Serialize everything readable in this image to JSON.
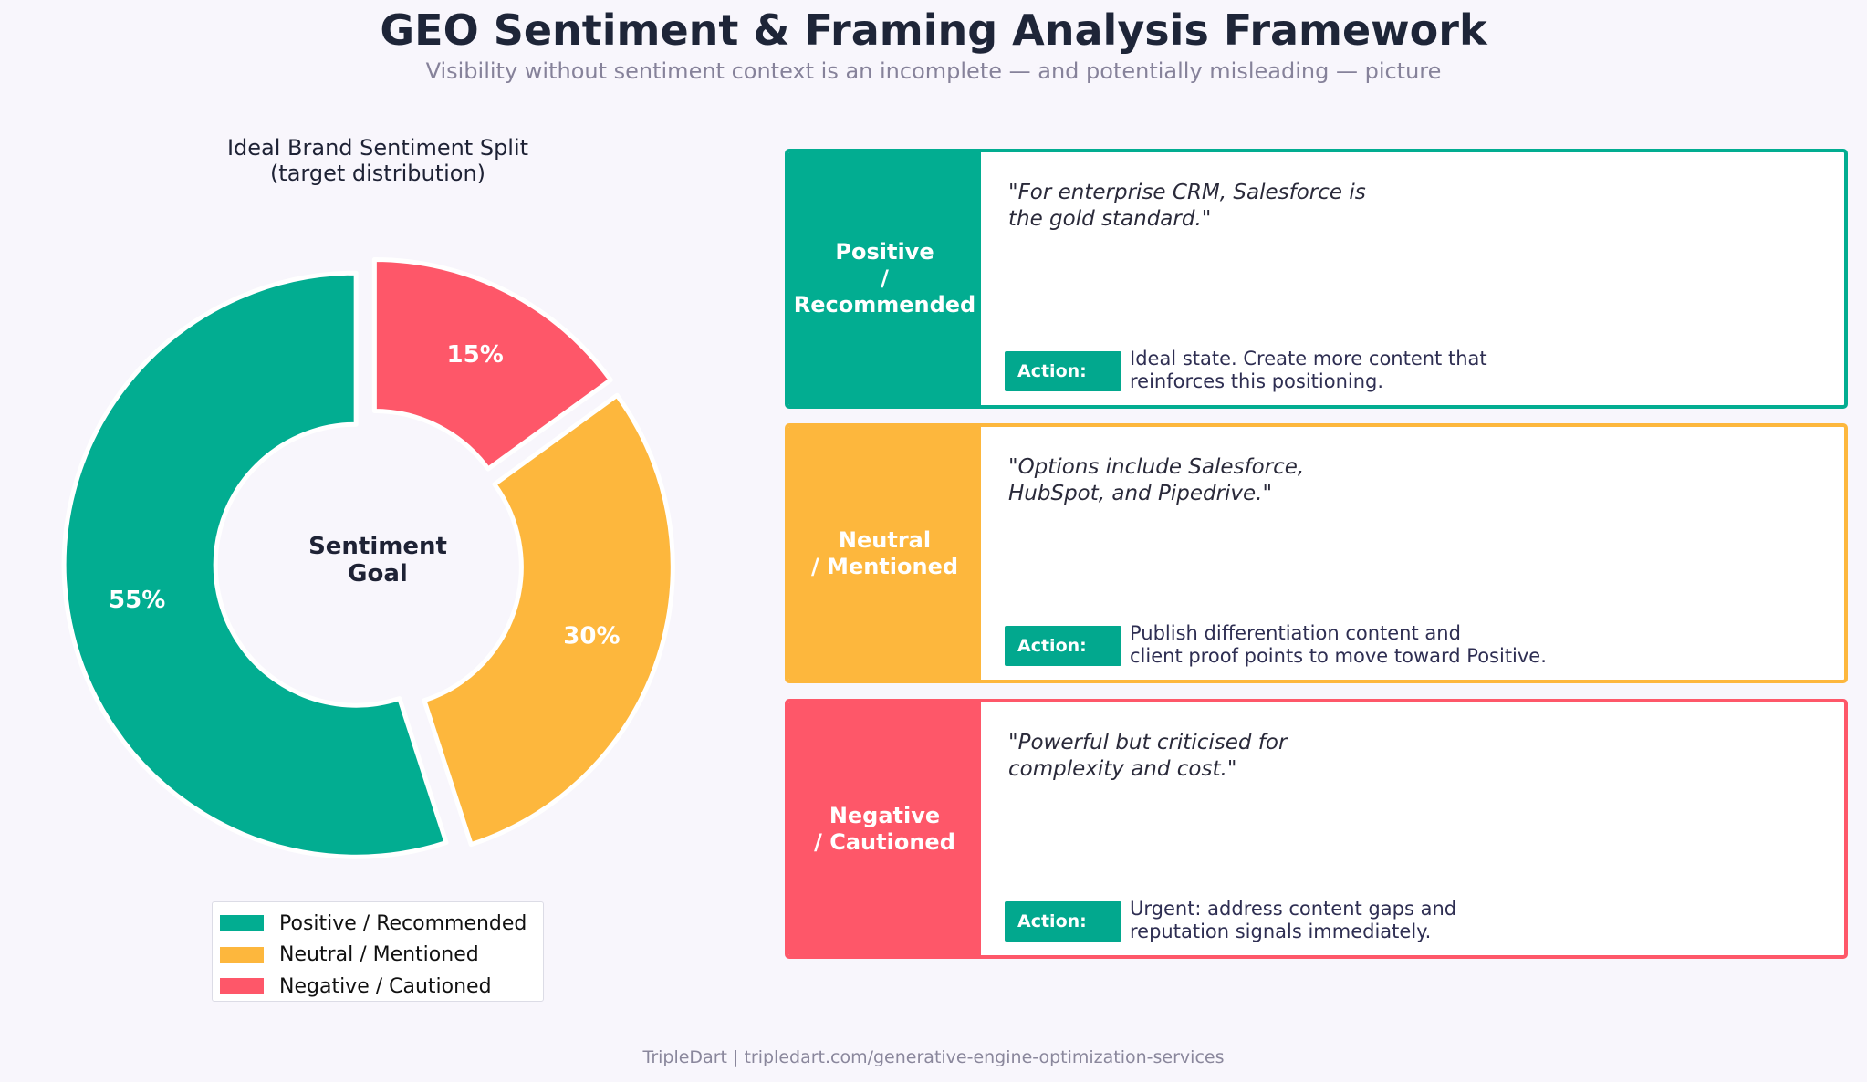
{
  "header": {
    "title": "GEO Sentiment & Framing Analysis Framework",
    "subtitle": "Visibility without sentiment context is an incomplete — and potentially misleading — picture"
  },
  "chart_data": {
    "type": "pie",
    "style": "donut, exploded slices",
    "title_line1": "Ideal Brand Sentiment Split",
    "title_line2": "(target distribution)",
    "center_line1": "Sentiment",
    "center_line2": "Goal",
    "categories": [
      "Positive / Recommended",
      "Neutral / Mentioned",
      "Negative / Cautioned"
    ],
    "values": [
      55,
      30,
      15
    ],
    "value_labels": [
      "55%",
      "30%",
      "15%"
    ],
    "colors": [
      "#02ad91",
      "#fdb73d",
      "#fe5769"
    ],
    "legend_placement": "bottom"
  },
  "cards": [
    {
      "band_line1": "Positive",
      "band_line2": "/ Recommended",
      "color": "#02ad91",
      "quote_line1": "\"For enterprise CRM, Salesforce is",
      "quote_line2": "the gold standard.\"",
      "action_label": "Action:",
      "action_line1": "Ideal state. Create more content that",
      "action_line2": "reinforces this positioning."
    },
    {
      "band_line1": "Neutral",
      "band_line2": "/ Mentioned",
      "color": "#fdb73d",
      "quote_line1": "\"Options include Salesforce,",
      "quote_line2": "HubSpot, and Pipedrive.\"",
      "action_label": "Action:",
      "action_line1": "Publish differentiation content and",
      "action_line2": "client proof points to move toward Positive."
    },
    {
      "band_line1": "Negative",
      "band_line2": "/ Cautioned",
      "color": "#fe5769",
      "quote_line1": "\"Powerful but criticised for",
      "quote_line2": "complexity and cost.\"",
      "action_label": "Action:",
      "action_line1": "Urgent: address content gaps and",
      "action_line2": "reputation signals immediately."
    }
  ],
  "footer": {
    "text": "TripleDart  |  tripledart.com/generative-engine-optimization-services"
  }
}
